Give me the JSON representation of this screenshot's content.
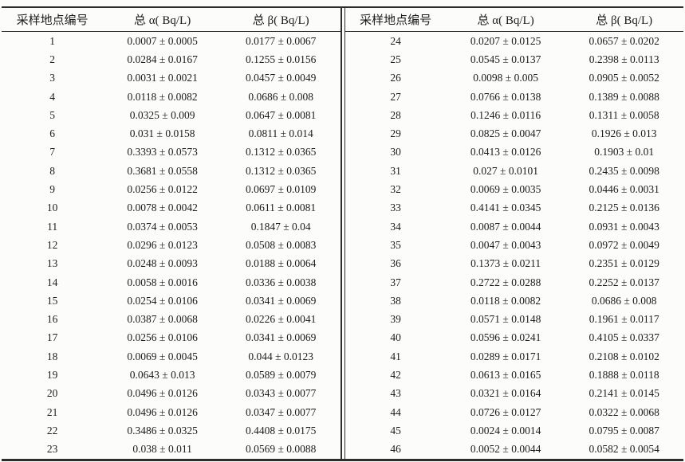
{
  "colors": {
    "background": "#fcfcfa",
    "border": "#2d2d2d",
    "text": "#1c1c1c"
  },
  "table": {
    "header": {
      "id": "采样地点编号",
      "alpha": "总 α( Bq/L)",
      "beta": "总 β( Bq/L)"
    },
    "left_rows": [
      {
        "id": "1",
        "alpha": "0.0007 ± 0.0005",
        "beta": "0.0177 ± 0.0067"
      },
      {
        "id": "2",
        "alpha": "0.0284 ± 0.0167",
        "beta": "0.1255 ± 0.0156"
      },
      {
        "id": "3",
        "alpha": "0.0031 ± 0.0021",
        "beta": "0.0457 ± 0.0049"
      },
      {
        "id": "4",
        "alpha": "0.0118 ± 0.0082",
        "beta": "0.0686 ± 0.008"
      },
      {
        "id": "5",
        "alpha": "0.0325 ± 0.009",
        "beta": "0.0647 ± 0.0081"
      },
      {
        "id": "6",
        "alpha": "0.031 ± 0.0158",
        "beta": "0.0811 ± 0.014"
      },
      {
        "id": "7",
        "alpha": "0.3393 ± 0.0573",
        "beta": "0.1312 ± 0.0365"
      },
      {
        "id": "8",
        "alpha": "0.3681 ± 0.0558",
        "beta": "0.1312 ± 0.0365"
      },
      {
        "id": "9",
        "alpha": "0.0256 ± 0.0122",
        "beta": "0.0697 ± 0.0109"
      },
      {
        "id": "10",
        "alpha": "0.0078 ± 0.0042",
        "beta": "0.0611 ± 0.0081"
      },
      {
        "id": "11",
        "alpha": "0.0374 ± 0.0053",
        "beta": "0.1847 ± 0.04"
      },
      {
        "id": "12",
        "alpha": "0.0296 ± 0.0123",
        "beta": "0.0508 ± 0.0083"
      },
      {
        "id": "13",
        "alpha": "0.0248 ± 0.0093",
        "beta": "0.0188 ± 0.0064"
      },
      {
        "id": "14",
        "alpha": "0.0058 ± 0.0016",
        "beta": "0.0336 ± 0.0038"
      },
      {
        "id": "15",
        "alpha": "0.0254 ± 0.0106",
        "beta": "0.0341 ± 0.0069"
      },
      {
        "id": "16",
        "alpha": "0.0387 ± 0.0068",
        "beta": "0.0226 ± 0.0041"
      },
      {
        "id": "17",
        "alpha": "0.0256 ± 0.0106",
        "beta": "0.0341 ± 0.0069"
      },
      {
        "id": "18",
        "alpha": "0.0069 ± 0.0045",
        "beta": "0.044 ± 0.0123"
      },
      {
        "id": "19",
        "alpha": "0.0643 ± 0.013",
        "beta": "0.0589 ± 0.0079"
      },
      {
        "id": "20",
        "alpha": "0.0496 ± 0.0126",
        "beta": "0.0343 ± 0.0077"
      },
      {
        "id": "21",
        "alpha": "0.0496 ± 0.0126",
        "beta": "0.0347 ± 0.0077"
      },
      {
        "id": "22",
        "alpha": "0.3486 ± 0.0325",
        "beta": "0.4408 ± 0.0175"
      },
      {
        "id": "23",
        "alpha": "0.038 ± 0.011",
        "beta": "0.0569 ± 0.0088"
      }
    ],
    "right_rows": [
      {
        "id": "24",
        "alpha": "0.0207 ± 0.0125",
        "beta": "0.0657 ± 0.0202"
      },
      {
        "id": "25",
        "alpha": "0.0545 ± 0.0137",
        "beta": "0.2398 ± 0.0113"
      },
      {
        "id": "26",
        "alpha": "0.0098 ± 0.005",
        "beta": "0.0905 ± 0.0052"
      },
      {
        "id": "27",
        "alpha": "0.0766 ± 0.0138",
        "beta": "0.1389 ± 0.0088"
      },
      {
        "id": "28",
        "alpha": "0.1246 ± 0.0116",
        "beta": "0.1311 ± 0.0058"
      },
      {
        "id": "29",
        "alpha": "0.0825 ± 0.0047",
        "beta": "0.1926 ± 0.013"
      },
      {
        "id": "30",
        "alpha": "0.0413 ± 0.0126",
        "beta": "0.1903 ± 0.01"
      },
      {
        "id": "31",
        "alpha": "0.027 ± 0.0101",
        "beta": "0.2435 ± 0.0098"
      },
      {
        "id": "32",
        "alpha": "0.0069 ± 0.0035",
        "beta": "0.0446 ± 0.0031"
      },
      {
        "id": "33",
        "alpha": "0.4141 ± 0.0345",
        "beta": "0.2125 ± 0.0136"
      },
      {
        "id": "34",
        "alpha": "0.0087 ± 0.0044",
        "beta": "0.0931 ± 0.0043"
      },
      {
        "id": "35",
        "alpha": "0.0047 ± 0.0043",
        "beta": "0.0972 ± 0.0049"
      },
      {
        "id": "36",
        "alpha": "0.1373 ± 0.0211",
        "beta": "0.2351 ± 0.0129"
      },
      {
        "id": "37",
        "alpha": "0.2722 ± 0.0288",
        "beta": "0.2252 ± 0.0137"
      },
      {
        "id": "38",
        "alpha": "0.0118 ± 0.0082",
        "beta": "0.0686 ± 0.008"
      },
      {
        "id": "39",
        "alpha": "0.0571 ± 0.0148",
        "beta": "0.1961 ± 0.0117"
      },
      {
        "id": "40",
        "alpha": "0.0596 ± 0.0241",
        "beta": "0.4105 ± 0.0337"
      },
      {
        "id": "41",
        "alpha": "0.0289 ± 0.0171",
        "beta": "0.2108 ± 0.0102"
      },
      {
        "id": "42",
        "alpha": "0.0613 ± 0.0165",
        "beta": "0.1888 ± 0.0118"
      },
      {
        "id": "43",
        "alpha": "0.0321 ± 0.0164",
        "beta": "0.2141 ± 0.0145"
      },
      {
        "id": "44",
        "alpha": "0.0726 ± 0.0127",
        "beta": "0.0322 ± 0.0068"
      },
      {
        "id": "45",
        "alpha": "0.0024 ± 0.0014",
        "beta": "0.0795 ± 0.0087"
      },
      {
        "id": "46",
        "alpha": "0.0052 ± 0.0044",
        "beta": "0.0582 ± 0.0054"
      }
    ]
  }
}
